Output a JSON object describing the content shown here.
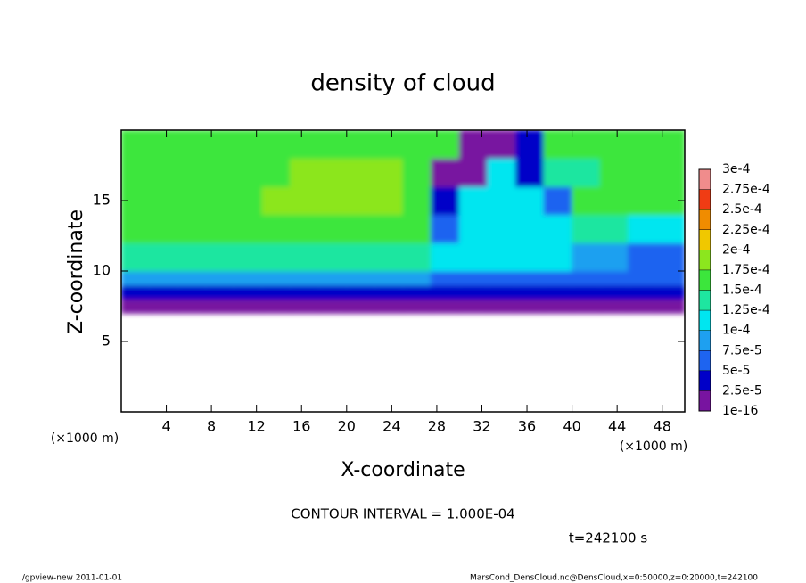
{
  "chart_data": {
    "type": "contour",
    "title": "density of cloud",
    "x_label": "X-coordinate",
    "y_label": "Z-coordinate",
    "unit_label": "(×1000 m)",
    "xlim": [
      0,
      50
    ],
    "xticks": [
      4,
      8,
      12,
      16,
      20,
      24,
      28,
      32,
      36,
      40,
      44,
      48
    ],
    "ylim": [
      0,
      20
    ],
    "yticks": [
      5,
      10,
      15
    ],
    "field": {
      "x_edges": [
        0,
        2.5,
        5,
        7.5,
        10,
        12.5,
        15,
        17.5,
        20,
        22.5,
        25,
        27.5,
        30,
        32.5,
        35,
        37.5,
        40,
        42.5,
        45,
        47.5,
        50
      ],
      "z_edges": [
        7,
        8,
        9,
        10,
        12,
        14,
        16,
        18,
        20
      ],
      "values": [
        [
          1e-05,
          1e-05,
          1e-05,
          1e-05,
          1e-05,
          1e-05,
          1e-05,
          1e-05,
          1e-05,
          1e-05,
          1e-05,
          1e-05,
          1e-05,
          1e-05,
          1e-05,
          1e-05,
          1e-05,
          1e-05,
          1e-05,
          1e-05
        ],
        [
          4e-05,
          4e-05,
          4e-05,
          4e-05,
          4e-05,
          4e-05,
          4e-05,
          4e-05,
          4e-05,
          4e-05,
          4e-05,
          3e-05,
          3e-05,
          3e-05,
          3e-05,
          3e-05,
          3e-05,
          3e-05,
          3e-05,
          3e-05
        ],
        [
          8e-05,
          8e-05,
          8e-05,
          8e-05,
          8e-05,
          8e-05,
          8e-05,
          8e-05,
          8e-05,
          8e-05,
          8e-05,
          6e-05,
          6e-05,
          6e-05,
          6e-05,
          6e-05,
          6e-05,
          6e-05,
          6e-05,
          6e-05
        ],
        [
          0.00014,
          0.00014,
          0.00014,
          0.00014,
          0.00014,
          0.00014,
          0.00014,
          0.00014,
          0.00014,
          0.00014,
          0.00014,
          0.00011,
          0.00011,
          0.00011,
          0.00011,
          0.00011,
          9e-05,
          9e-05,
          6e-05,
          6e-05
        ],
        [
          0.00016,
          0.00016,
          0.00016,
          0.00016,
          0.00016,
          0.00016,
          0.00016,
          0.00016,
          0.00016,
          0.00016,
          0.00016,
          6e-05,
          0.00012,
          0.00012,
          0.00012,
          0.00012,
          0.00014,
          0.00014,
          0.00011,
          0.00011
        ],
        [
          0.00016,
          0.00016,
          0.00016,
          0.00016,
          0.00016,
          0.00018,
          0.00018,
          0.00018,
          0.00018,
          0.00018,
          0.00016,
          4e-05,
          0.00011,
          0.00011,
          0.00011,
          5e-05,
          0.00015,
          0.00015,
          0.00015,
          0.00015
        ],
        [
          0.00016,
          0.00016,
          0.00016,
          0.00016,
          0.00016,
          0.00016,
          0.00018,
          0.00018,
          0.00018,
          0.00018,
          0.00016,
          1e-05,
          1e-05,
          0.00012,
          3e-05,
          0.00014,
          0.00014,
          0.00016,
          0.00016,
          0.00016
        ],
        [
          0.00016,
          0.00016,
          0.00016,
          0.00016,
          0.00016,
          0.00016,
          0.00016,
          0.00016,
          0.00016,
          0.00016,
          0.00016,
          0.00016,
          1e-05,
          1e-05,
          3e-05,
          0.00016,
          0.00016,
          0.00016,
          0.00016,
          0.00016
        ]
      ]
    },
    "colorbar": {
      "levels": [
        {
          "value": 1e-16,
          "label": "1e-16"
        },
        {
          "value": 2.5e-05,
          "label": "2.5e-5"
        },
        {
          "value": 5e-05,
          "label": "5e-5"
        },
        {
          "value": 7.5e-05,
          "label": "7.5e-5"
        },
        {
          "value": 0.0001,
          "label": "1e-4"
        },
        {
          "value": 0.000125,
          "label": "1.25e-4"
        },
        {
          "value": 0.00015,
          "label": "1.5e-4"
        },
        {
          "value": 0.000175,
          "label": "1.75e-4"
        },
        {
          "value": 0.0002,
          "label": "2e-4"
        },
        {
          "value": 0.000225,
          "label": "2.25e-4"
        },
        {
          "value": 0.00025,
          "label": "2.5e-4"
        },
        {
          "value": 0.000275,
          "label": "2.75e-4"
        },
        {
          "value": 0.0003,
          "label": "3e-4"
        }
      ],
      "colors": [
        "#7814a0",
        "#0000c8",
        "#1e64f0",
        "#1ea0f0",
        "#00e6f0",
        "#1ee6a0",
        "#3ce63c",
        "#8ce61e",
        "#f0c800",
        "#f08c00",
        "#f03c14",
        "#f08c8c"
      ]
    },
    "annotation": "CONTOUR INTERVAL = 1.000E-04",
    "time_label": "t=242100 s",
    "footer_left": "./gpview-new  2011-01-01",
    "footer_right": "MarsCond_DensCloud.nc@DensCloud,x=0:50000,z=0:20000,t=242100"
  }
}
